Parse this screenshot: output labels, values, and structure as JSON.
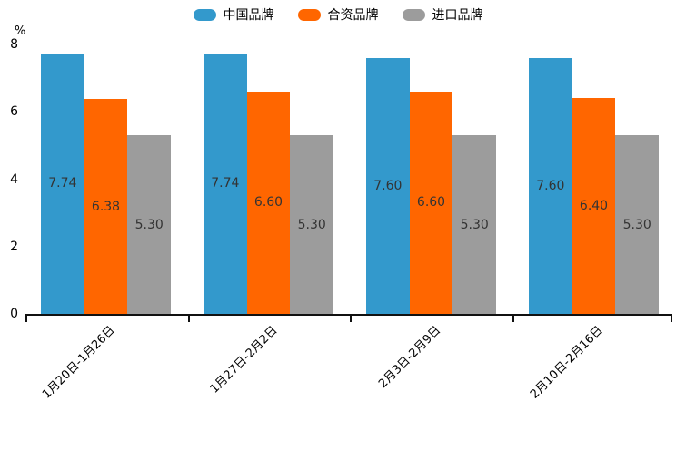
{
  "chart_data": {
    "type": "bar",
    "title": "",
    "xlabel": "",
    "ylabel": "%",
    "ylim": [
      0,
      8
    ],
    "yticks": [
      8,
      6,
      4,
      2,
      0
    ],
    "grid": false,
    "legend_position": "top",
    "categories": [
      "1月20日-1月26日",
      "1月27日-2月2日",
      "2月3日-2月9日",
      "2月10日-2月16日"
    ],
    "series": [
      {
        "key": "china-brand",
        "name": "中国品牌",
        "color": "#3399CC",
        "values": [
          7.74,
          7.74,
          7.6,
          7.6
        ]
      },
      {
        "key": "joint-venture-brand",
        "name": "合资品牌",
        "color": "#FF6600",
        "values": [
          6.38,
          6.6,
          6.6,
          6.4
        ]
      },
      {
        "key": "import-brand",
        "name": "进口品牌",
        "color": "#9C9C9C",
        "values": [
          5.3,
          5.3,
          5.3,
          5.3
        ]
      }
    ],
    "bar_label_color": "#333333",
    "axis_color": "#111111"
  }
}
